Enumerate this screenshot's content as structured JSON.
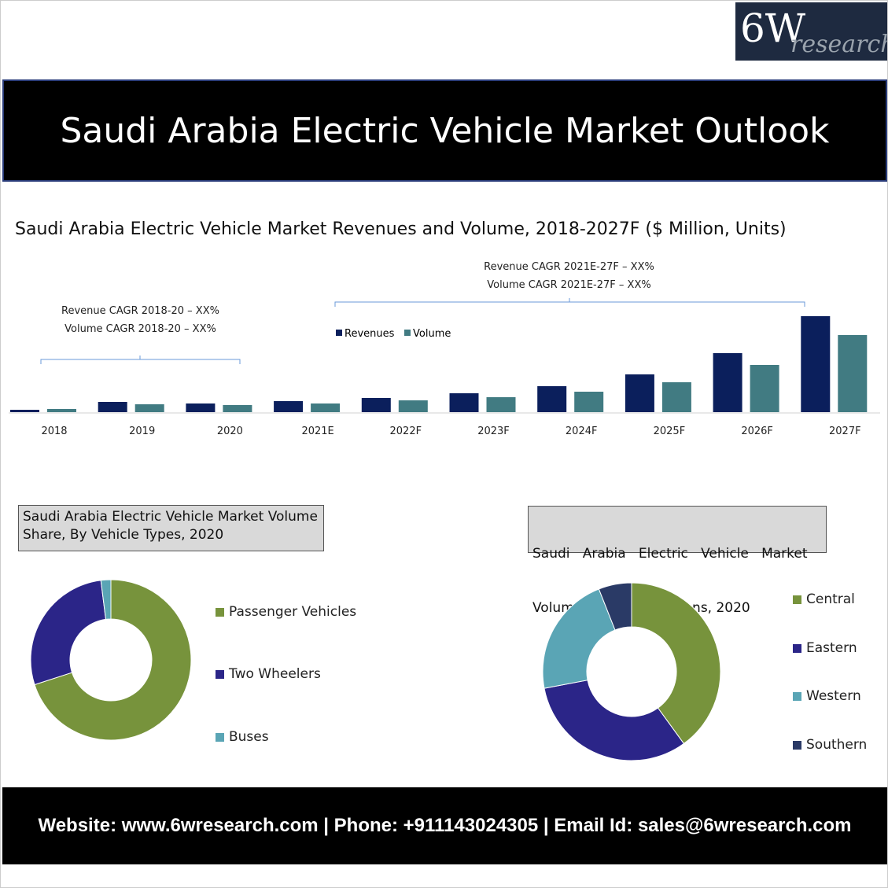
{
  "logo": {
    "main": "6W",
    "sub": "research"
  },
  "banner": {
    "title": "Saudi Arabia Electric Vehicle Market Outlook"
  },
  "colors": {
    "revenues": "#0b1f5c",
    "volume": "#417b82",
    "passenger": "#77933c",
    "two_wheelers": "#2b2588",
    "buses": "#5aa5b5",
    "central": "#77933c",
    "eastern": "#2b2588",
    "western": "#5aa5b5",
    "southern": "#2a3a66"
  },
  "chart_data": [
    {
      "type": "bar",
      "title": "Saudi Arabia Electric Vehicle Market Revenues and Volume, 2018-2027F ($ Million, Units)",
      "categories": [
        "2018",
        "2019",
        "2020",
        "2021E",
        "2022F",
        "2023F",
        "2024F",
        "2025F",
        "2026F",
        "2027F"
      ],
      "series": [
        {
          "name": "Revenues",
          "values": [
            3,
            13,
            11,
            14,
            18,
            24,
            33,
            48,
            75,
            122
          ]
        },
        {
          "name": "Volume",
          "values": [
            4,
            10,
            9,
            11,
            15,
            19,
            26,
            38,
            60,
            98
          ]
        }
      ],
      "ylim": [
        0,
        125
      ],
      "legend": "top-center",
      "annotations": {
        "left": [
          "Revenue CAGR 2018-20 – XX%",
          "Volume CAGR 2018-20 – XX%"
        ],
        "right": [
          "Revenue CAGR 2021E-27F – XX%",
          "Volume CAGR 2021E-27F – XX%"
        ]
      }
    },
    {
      "type": "pie",
      "title": "Saudi Arabia Electric Vehicle Market Volume Share, By Vehicle Types, 2020",
      "title_lines": [
        "Saudi Arabia Electric Vehicle Market Volume",
        "Share, By Vehicle Types, 2020"
      ],
      "labels": [
        "Passenger Vehicles",
        "Two Wheelers",
        "Buses"
      ],
      "values": [
        70,
        28,
        2
      ]
    },
    {
      "type": "pie",
      "title": "Saudi Arabia Electric Vehicle Market Volume Share, By Regions, 2020",
      "title_lines": [
        "Saudi   Arabia   Electric   Vehicle   Market",
        "Volume Share, By Regions, 2020"
      ],
      "labels": [
        "Central",
        "Eastern",
        "Western",
        "Southern"
      ],
      "values": [
        40,
        32,
        22,
        6
      ]
    }
  ],
  "footer": {
    "text": "Website: www.6wresearch.com | Phone: +911143024305 | Email Id: sales@6wresearch.com"
  }
}
